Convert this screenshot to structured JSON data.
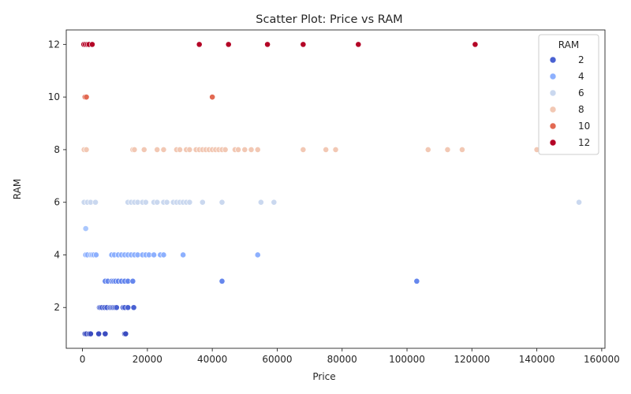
{
  "chart_data": {
    "type": "scatter",
    "title": "Scatter Plot: Price vs RAM",
    "xlabel": "Price",
    "ylabel": "RAM",
    "xlim": [
      -5000,
      161000
    ],
    "ylim": [
      0.45,
      12.55
    ],
    "xticks": [
      0,
      20000,
      40000,
      60000,
      80000,
      100000,
      120000,
      140000,
      160000
    ],
    "xtick_labels": [
      "0",
      "20000",
      "40000",
      "60000",
      "80000",
      "100000",
      "120000",
      "140000",
      "160000"
    ],
    "yticks": [
      2,
      4,
      6,
      8,
      10,
      12
    ],
    "ytick_labels": [
      "2",
      "4",
      "6",
      "8",
      "10",
      "12"
    ],
    "grid": false,
    "hue": "RAM",
    "colormap": "coolwarm",
    "legend": {
      "title": "RAM",
      "placement": "top-right",
      "entries": [
        {
          "label": "2",
          "value": 2,
          "color": "#4961d2"
        },
        {
          "label": "4",
          "value": 4,
          "color": "#8db0fe"
        },
        {
          "label": "6",
          "value": 6,
          "color": "#cad8ef"
        },
        {
          "label": "8",
          "value": 8,
          "color": "#f2c8b4"
        },
        {
          "label": "10",
          "value": 10,
          "color": "#e26952"
        },
        {
          "label": "12",
          "value": 12,
          "color": "#b40426"
        }
      ]
    },
    "series": [
      {
        "ram": 1,
        "color": "#3b4cc0",
        "x": [
          800,
          1200,
          2000,
          2500,
          5000,
          7000,
          13000,
          13300
        ]
      },
      {
        "ram": 2,
        "color": "#4961d2",
        "x": [
          5200,
          5500,
          6000,
          6800,
          7500,
          8500,
          9000,
          9500,
          10000,
          10500,
          12500,
          13000,
          14000,
          15800
        ]
      },
      {
        "ram": 3,
        "color": "#6687ed",
        "x": [
          7000,
          7800,
          9000,
          9600,
          10200,
          11000,
          12000,
          13000,
          14000,
          15500,
          43000,
          103000
        ]
      },
      {
        "ram": 4,
        "color": "#8db0fe",
        "x": [
          1000,
          1500,
          2500,
          3000,
          3500,
          4200,
          9000,
          9800,
          11000,
          12000,
          13000,
          14000,
          15000,
          16000,
          17000,
          18500,
          19500,
          20500,
          22000,
          24000,
          25000,
          31000,
          54000
        ]
      },
      {
        "ram": 5,
        "color": "#aac7fd",
        "x": [
          1000
        ]
      },
      {
        "ram": 6,
        "color": "#cad8ef",
        "x": [
          500,
          1500,
          2500,
          4000,
          14000,
          15000,
          16000,
          17000,
          18500,
          19500,
          22000,
          23000,
          25000,
          26000,
          28000,
          29000,
          30000,
          31000,
          32000,
          33000,
          37000,
          43000,
          55000,
          59000,
          153000
        ]
      },
      {
        "ram": 8,
        "color": "#f2c8b4",
        "x": [
          500,
          1200,
          15500,
          16000,
          19000,
          23000,
          25000,
          29000,
          30000,
          32000,
          33000,
          35000,
          36000,
          37000,
          38000,
          39000,
          40000,
          41000,
          42000,
          43000,
          44000,
          47000,
          48000,
          50000,
          52000,
          54000,
          68000,
          75000,
          78000,
          106500,
          112500,
          117000,
          140000
        ]
      },
      {
        "ram": 10,
        "color": "#e26952",
        "x": [
          800,
          1200,
          40000
        ]
      },
      {
        "ram": 12,
        "color": "#b40426",
        "x": [
          400,
          900,
          1500,
          2000,
          3000,
          36000,
          45000,
          57000,
          68000,
          85000,
          121000
        ]
      }
    ]
  }
}
